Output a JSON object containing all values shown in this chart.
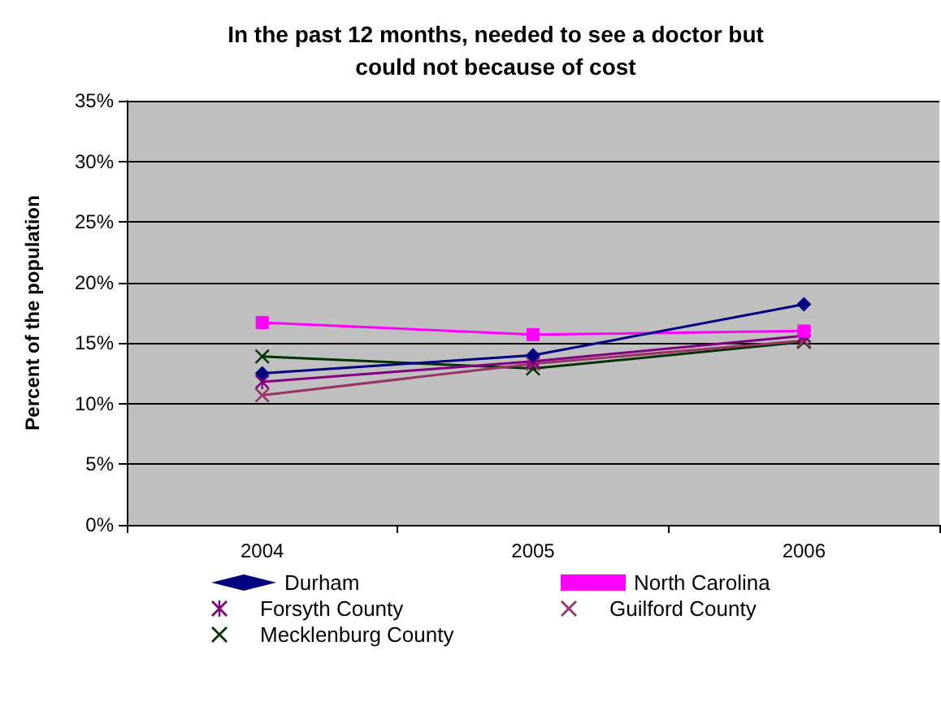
{
  "chart_data": {
    "type": "line",
    "title": "In the past 12 months, needed to see a doctor but\ncould not because of cost",
    "ylabel": "Percent of the population",
    "categories": [
      "2004",
      "2005",
      "2006"
    ],
    "series": [
      {
        "name": "Durham",
        "color": "#000080",
        "marker": "diamond",
        "values": [
          12.5,
          14.0,
          18.2
        ]
      },
      {
        "name": "North Carolina",
        "color": "#ff00ff",
        "marker": "square",
        "values": [
          16.7,
          15.7,
          16.0
        ]
      },
      {
        "name": "Forsyth County",
        "color": "#800080",
        "marker": "star",
        "values": [
          11.8,
          13.5,
          15.6
        ]
      },
      {
        "name": "Guilford County",
        "color": "#993366",
        "marker": "cross",
        "values": [
          10.7,
          13.3,
          15.2
        ]
      },
      {
        "name": "Mecklenburg County",
        "color": "#003300",
        "marker": "cross",
        "values": [
          13.9,
          12.9,
          15.1
        ]
      }
    ],
    "ylim": [
      0,
      35
    ],
    "yticks": [
      {
        "value": 0,
        "label": "0%"
      },
      {
        "value": 5,
        "label": "5%"
      },
      {
        "value": 10,
        "label": "10%"
      },
      {
        "value": 15,
        "label": "15%"
      },
      {
        "value": 20,
        "label": "20%"
      },
      {
        "value": 25,
        "label": "25%"
      },
      {
        "value": 30,
        "label": "30%"
      },
      {
        "value": 35,
        "label": "35%"
      }
    ],
    "grid": "y",
    "legend": "bottom",
    "line_style": "solid"
  }
}
